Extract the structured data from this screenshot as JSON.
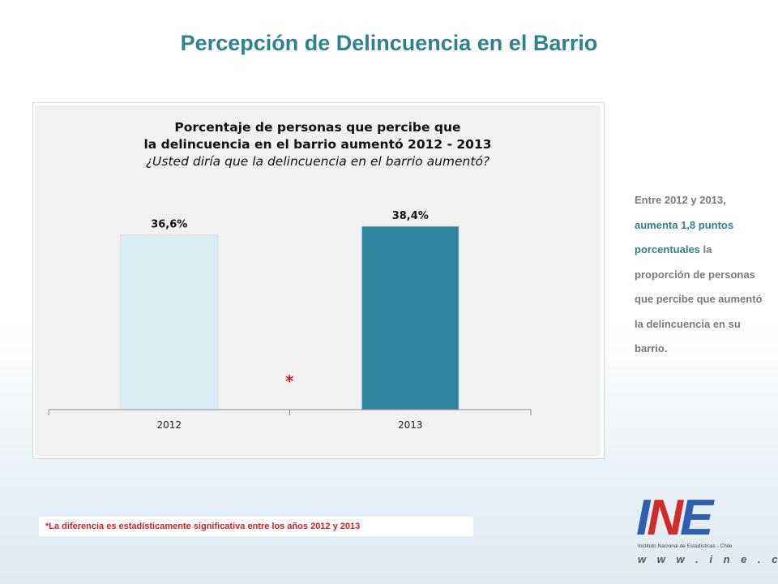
{
  "page": {
    "title": "Percepción de Delincuencia en el Barrio"
  },
  "chart_data": {
    "type": "bar",
    "title_line1": "Porcentaje de personas que percibe que",
    "title_line2": "la delincuencia en el barrio aumentó 2012 - 2013",
    "subtitle": "¿Usted diría que la delincuencia en el barrio aumentó?",
    "categories": [
      "2012",
      "2013"
    ],
    "values": [
      36.6,
      38.4
    ],
    "data_labels": [
      "36,6%",
      "38,4%"
    ],
    "bar_colors": [
      "#daedf4",
      "#2e859d"
    ],
    "ylim": [
      0,
      45
    ],
    "grid": false,
    "legend": "none",
    "significance_marker": "*"
  },
  "sidebar": {
    "text_part1": "Entre 2012 y 2013,",
    "text_highlight": "aumenta 1,8 puntos porcentuales",
    "text_part2": "la proporción de personas que percibe que aumentó la delincuencia en su barrio."
  },
  "footnote": "*La diferencia es estadísticamente significativa entre los años 2012 y 2013",
  "logo": {
    "letters_1": "I",
    "letters_2": "N",
    "letters_3": "E",
    "subtitle": "Instituto Nacional de Estadísticas - Chile",
    "url": "w w w . i n e . c l"
  },
  "colors": {
    "title": "#2e8290",
    "accent_red": "#d0202a"
  }
}
